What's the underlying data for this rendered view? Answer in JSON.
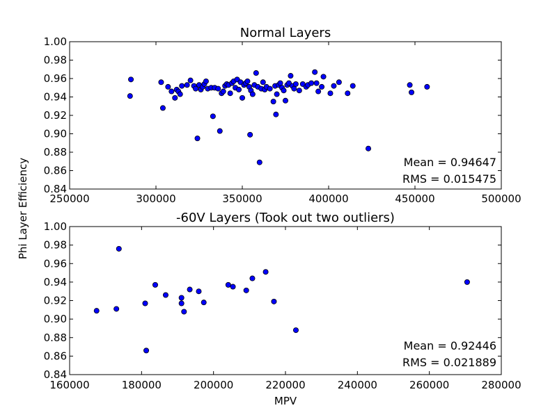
{
  "figure": {
    "ylabel": "Phi Layer Efficiency"
  },
  "chart_data": [
    {
      "type": "scatter",
      "title": "Normal Layers",
      "xlabel": "",
      "ylabel": "",
      "xlim": [
        250000,
        500000
      ],
      "ylim": [
        0.84,
        1.0
      ],
      "xticks": [
        250000,
        300000,
        350000,
        400000,
        450000,
        500000
      ],
      "xtick_labels": [
        "250000",
        "300000",
        "350000",
        "400000",
        "450000",
        "500000"
      ],
      "yticks": [
        0.84,
        0.86,
        0.88,
        0.9,
        0.92,
        0.94,
        0.96,
        0.98,
        1.0
      ],
      "ytick_labels": [
        "0.84",
        "0.86",
        "0.88",
        "0.90",
        "0.92",
        "0.94",
        "0.96",
        "0.98",
        "1.00"
      ],
      "grid": false,
      "marker_color": "#0000ff",
      "annotations": [
        "Mean = 0.94647",
        "RMS = 0.015475"
      ],
      "points": [
        [
          285500,
          0.959
        ],
        [
          285000,
          0.941
        ],
        [
          303000,
          0.956
        ],
        [
          304000,
          0.928
        ],
        [
          307000,
          0.951
        ],
        [
          309000,
          0.946
        ],
        [
          311000,
          0.939
        ],
        [
          312000,
          0.948
        ],
        [
          313000,
          0.946
        ],
        [
          314000,
          0.943
        ],
        [
          315000,
          0.952
        ],
        [
          318000,
          0.953
        ],
        [
          320000,
          0.958
        ],
        [
          322000,
          0.952
        ],
        [
          323000,
          0.949
        ],
        [
          324000,
          0.895
        ],
        [
          325000,
          0.953
        ],
        [
          326000,
          0.948
        ],
        [
          327000,
          0.951
        ],
        [
          328000,
          0.954
        ],
        [
          329000,
          0.957
        ],
        [
          330000,
          0.949
        ],
        [
          332000,
          0.95
        ],
        [
          333000,
          0.919
        ],
        [
          334000,
          0.95
        ],
        [
          336000,
          0.949
        ],
        [
          337000,
          0.903
        ],
        [
          338000,
          0.944
        ],
        [
          339000,
          0.946
        ],
        [
          340000,
          0.952
        ],
        [
          341000,
          0.954
        ],
        [
          342000,
          0.953
        ],
        [
          343000,
          0.944
        ],
        [
          344000,
          0.955
        ],
        [
          345000,
          0.957
        ],
        [
          346000,
          0.95
        ],
        [
          347000,
          0.959
        ],
        [
          348000,
          0.948
        ],
        [
          349000,
          0.956
        ],
        [
          350000,
          0.939
        ],
        [
          351000,
          0.953
        ],
        [
          352000,
          0.955
        ],
        [
          353000,
          0.957
        ],
        [
          354000,
          0.951
        ],
        [
          354500,
          0.899
        ],
        [
          355000,
          0.947
        ],
        [
          356000,
          0.943
        ],
        [
          357000,
          0.953
        ],
        [
          358000,
          0.966
        ],
        [
          359000,
          0.951
        ],
        [
          360000,
          0.869
        ],
        [
          361000,
          0.949
        ],
        [
          362000,
          0.956
        ],
        [
          363000,
          0.948
        ],
        [
          364000,
          0.951
        ],
        [
          366000,
          0.949
        ],
        [
          368000,
          0.935
        ],
        [
          369000,
          0.952
        ],
        [
          369500,
          0.921
        ],
        [
          370000,
          0.943
        ],
        [
          371000,
          0.953
        ],
        [
          372000,
          0.955
        ],
        [
          373000,
          0.95
        ],
        [
          374000,
          0.947
        ],
        [
          375000,
          0.936
        ],
        [
          376000,
          0.953
        ],
        [
          377000,
          0.955
        ],
        [
          378000,
          0.963
        ],
        [
          379000,
          0.952
        ],
        [
          380000,
          0.949
        ],
        [
          381000,
          0.954
        ],
        [
          383000,
          0.947
        ],
        [
          385000,
          0.954
        ],
        [
          387000,
          0.951
        ],
        [
          388000,
          0.953
        ],
        [
          390000,
          0.955
        ],
        [
          392000,
          0.967
        ],
        [
          393000,
          0.955
        ],
        [
          394000,
          0.946
        ],
        [
          396000,
          0.951
        ],
        [
          397000,
          0.962
        ],
        [
          401000,
          0.944
        ],
        [
          403000,
          0.952
        ],
        [
          406000,
          0.956
        ],
        [
          411000,
          0.944
        ],
        [
          414000,
          0.952
        ],
        [
          423000,
          0.884
        ],
        [
          447000,
          0.953
        ],
        [
          448000,
          0.945
        ],
        [
          457000,
          0.951
        ]
      ]
    },
    {
      "type": "scatter",
      "title": "-60V Layers (Took out two outliers)",
      "xlabel": "MPV",
      "ylabel": "",
      "xlim": [
        160000,
        280000
      ],
      "ylim": [
        0.84,
        1.0
      ],
      "xticks": [
        160000,
        180000,
        200000,
        220000,
        240000,
        260000,
        280000
      ],
      "xtick_labels": [
        "160000",
        "180000",
        "200000",
        "220000",
        "240000",
        "260000",
        "280000"
      ],
      "yticks": [
        0.84,
        0.86,
        0.88,
        0.9,
        0.92,
        0.94,
        0.96,
        0.98,
        1.0
      ],
      "ytick_labels": [
        "0.84",
        "0.86",
        "0.88",
        "0.90",
        "0.92",
        "0.94",
        "0.96",
        "0.98",
        "1.00"
      ],
      "grid": false,
      "marker_color": "#0000ff",
      "annotations": [
        "Mean = 0.92446",
        "RMS = 0.021889"
      ],
      "points": [
        [
          167500,
          0.909
        ],
        [
          173000,
          0.911
        ],
        [
          173700,
          0.976
        ],
        [
          181000,
          0.917
        ],
        [
          181300,
          0.866
        ],
        [
          183800,
          0.937
        ],
        [
          186700,
          0.926
        ],
        [
          191100,
          0.923
        ],
        [
          191100,
          0.917
        ],
        [
          191800,
          0.908
        ],
        [
          193400,
          0.932
        ],
        [
          195900,
          0.93
        ],
        [
          197300,
          0.918
        ],
        [
          204100,
          0.937
        ],
        [
          205400,
          0.935
        ],
        [
          209100,
          0.931
        ],
        [
          210800,
          0.944
        ],
        [
          214500,
          0.951
        ],
        [
          216800,
          0.919
        ],
        [
          222900,
          0.888
        ],
        [
          270500,
          0.94
        ]
      ]
    }
  ]
}
